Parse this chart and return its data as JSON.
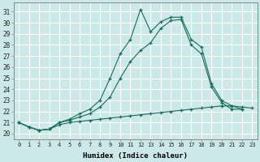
{
  "bg_color": "#cce8e8",
  "grid_color": "#ffffff",
  "line_color": "#1a6b5a",
  "xlabel": "Humidex (Indice chaleur)",
  "xlim": [
    -0.5,
    23.5
  ],
  "ylim": [
    19.5,
    31.8
  ],
  "yticks": [
    20,
    21,
    22,
    23,
    24,
    25,
    26,
    27,
    28,
    29,
    30,
    31
  ],
  "xticks": [
    0,
    1,
    2,
    3,
    4,
    5,
    6,
    7,
    8,
    9,
    10,
    11,
    12,
    13,
    14,
    15,
    16,
    17,
    18,
    19,
    20,
    21,
    22,
    23
  ],
  "line_max_x": [
    0,
    1,
    2,
    3,
    4,
    5,
    6,
    7,
    8,
    9,
    10,
    11,
    12,
    13,
    14,
    15,
    16,
    17,
    18,
    19,
    20,
    21,
    22
  ],
  "line_max_y": [
    21.0,
    20.6,
    20.3,
    20.4,
    21.0,
    21.3,
    21.8,
    22.2,
    23.0,
    25.0,
    27.2,
    28.5,
    31.2,
    29.2,
    30.1,
    30.5,
    30.5,
    28.5,
    27.8,
    24.5,
    23.0,
    22.5,
    22.2
  ],
  "line_mean_x": [
    0,
    1,
    2,
    3,
    4,
    5,
    6,
    7,
    8,
    9,
    10,
    11,
    12,
    13,
    14,
    15,
    16,
    17,
    18,
    19,
    20,
    21,
    22
  ],
  "line_mean_y": [
    21.0,
    20.6,
    20.3,
    20.4,
    21.0,
    21.2,
    21.5,
    21.8,
    22.4,
    23.3,
    25.0,
    26.5,
    27.5,
    28.2,
    29.5,
    30.2,
    30.3,
    28.0,
    27.2,
    24.2,
    22.8,
    22.2,
    22.2
  ],
  "line_min_x": [
    0,
    1,
    2,
    3,
    4,
    5,
    6,
    7,
    8,
    9,
    10,
    11,
    12,
    13,
    14,
    15,
    16,
    17,
    18,
    19,
    20,
    21,
    22,
    23
  ],
  "line_min_y": [
    21.0,
    20.6,
    20.3,
    20.4,
    20.8,
    21.0,
    21.1,
    21.2,
    21.3,
    21.4,
    21.5,
    21.6,
    21.7,
    21.8,
    21.9,
    22.0,
    22.1,
    22.2,
    22.3,
    22.4,
    22.5,
    22.5,
    22.4,
    22.3
  ]
}
